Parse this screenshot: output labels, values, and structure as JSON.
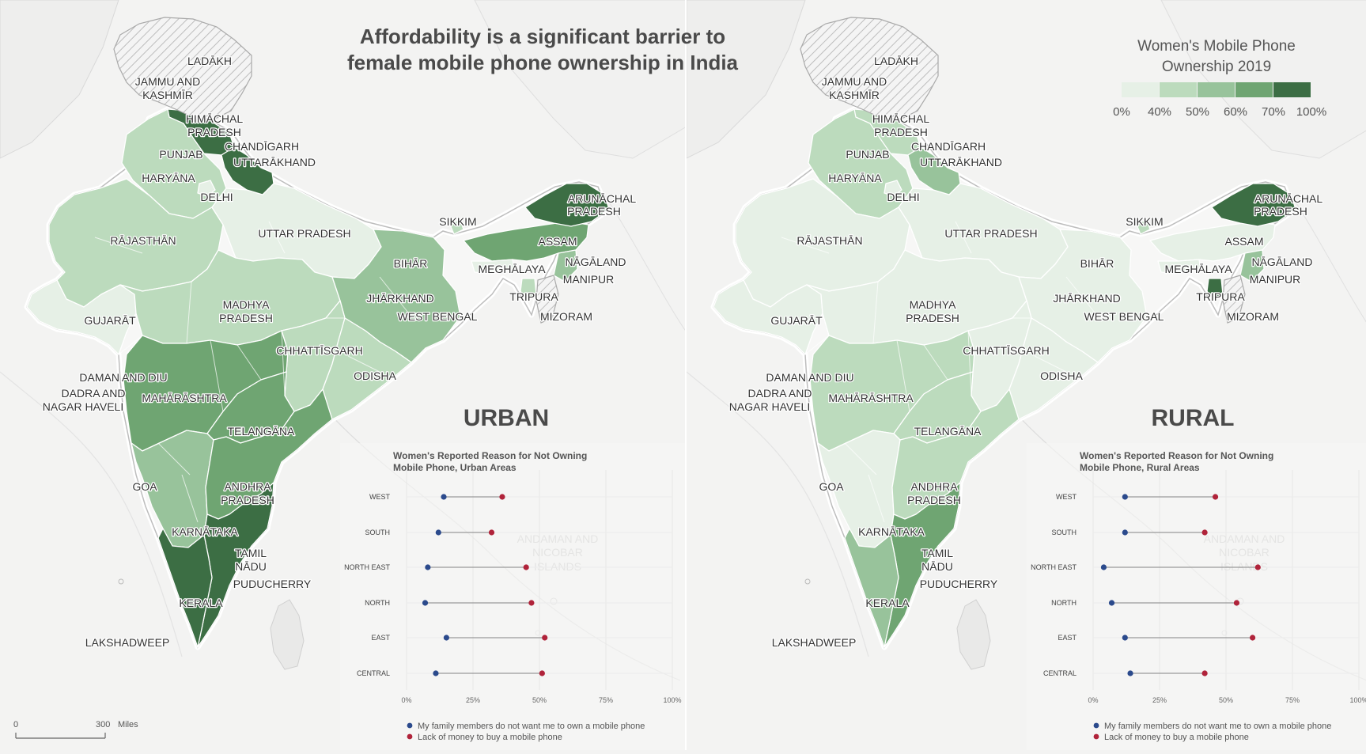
{
  "title_line1": "Affordability is a significant barrier to",
  "title_line2": "female mobile phone ownership in India",
  "legend": {
    "title_line1": "Women's Mobile Phone",
    "title_line2": "Ownership 2019",
    "bins": [
      {
        "label": "0%",
        "color": "#e6f0e6"
      },
      {
        "label": "40%",
        "color": "#bcdbbd"
      },
      {
        "label": "50%",
        "color": "#98c39b"
      },
      {
        "label": "60%",
        "color": "#6fa572"
      },
      {
        "label": "70%",
        "color": "#3c6e44"
      }
    ],
    "end_label": "100%"
  },
  "scale_bar": {
    "zero": "0",
    "value": "300",
    "unit": "Miles"
  },
  "colors": {
    "hatch": "#e9e9e9",
    "land": "#f7f7f6",
    "series1": "#2b4a8c",
    "series2": "#b0233a"
  },
  "panels": [
    {
      "name": "URBAN",
      "region_colors": {
        "north_west": "#bcdbbd",
        "himachal": "#3c6e44",
        "uttarakhand": "#3c6e44",
        "delhi": "#e6f0e6",
        "rajasthan": "#bcdbbd",
        "uttar_pradesh": "#e6f0e6",
        "gujarat": "#e6f0e6",
        "madhya": "#bcdbbd",
        "east": "#98c39b",
        "chhattisgarh": "#bcdbbd",
        "odisha": "#bcdbbd",
        "maharashtra": "#6fa572",
        "telangana": "#6fa572",
        "karnataka": "#98c39b",
        "andhra": "#6fa572",
        "tamil": "#3c6e44",
        "kerala": "#3c6e44",
        "ne": "#6fa572",
        "arunachal": "#3c6e44",
        "sikkim": "#bcdbbd",
        "meghalaya": "#e6f0e6",
        "manipur": "#98c39b",
        "tripura": "#bcdbbd"
      },
      "chart_data": {
        "type": "dumbbell",
        "title": "Women's Reported Reason for Not Owning Mobile Phone, Urban Areas",
        "title_line1": "Women's Reported Reason for Not Owning",
        "title_line2": "Mobile Phone, Urban Areas",
        "categories": [
          "WEST",
          "SOUTH",
          "NORTH EAST",
          "NORTH",
          "EAST",
          "CENTRAL"
        ],
        "series": [
          {
            "name": "My family members do not want me to own a mobile phone",
            "values": [
              14,
              12,
              8,
              7,
              15,
              11
            ]
          },
          {
            "name": "Lack of money to buy a mobile phone",
            "values": [
              36,
              32,
              45,
              47,
              52,
              51
            ]
          }
        ],
        "x_ticks": [
          "0%",
          "25%",
          "50%",
          "75%",
          "100%"
        ],
        "xlim": [
          0,
          100
        ],
        "grid": true
      }
    },
    {
      "name": "RURAL",
      "region_colors": {
        "north_west": "#bcdbbd",
        "himachal": "#bcdbbd",
        "uttarakhand": "#98c39b",
        "delhi": "#e6f0e6",
        "rajasthan": "#e6f0e6",
        "uttar_pradesh": "#e6f0e6",
        "gujarat": "#e6f0e6",
        "madhya": "#e6f0e6",
        "east": "#e6f0e6",
        "chhattisgarh": "#e6f0e6",
        "odisha": "#e6f0e6",
        "maharashtra": "#bcdbbd",
        "telangana": "#bcdbbd",
        "karnataka": "#e6f0e6",
        "andhra": "#bcdbbd",
        "tamil": "#6fa572",
        "kerala": "#98c39b",
        "ne": "#e6f0e6",
        "arunachal": "#3c6e44",
        "sikkim": "#bcdbbd",
        "meghalaya": "#e6f0e6",
        "manipur": "#98c39b",
        "tripura": "#3c6e44"
      },
      "chart_data": {
        "type": "dumbbell",
        "title": "Women's Reported Reason for Not Owning Mobile Phone, Rural Areas",
        "title_line1": "Women's Reported Reason for Not Owning",
        "title_line2": "Mobile Phone, Rural Areas",
        "categories": [
          "WEST",
          "SOUTH",
          "NORTH EAST",
          "NORTH",
          "EAST",
          "CENTRAL"
        ],
        "series": [
          {
            "name": "My family members do not want me to own a mobile phone",
            "values": [
              12,
              12,
              4,
              7,
              12,
              14
            ]
          },
          {
            "name": "Lack of money to buy a mobile phone",
            "values": [
              46,
              42,
              62,
              54,
              60,
              42
            ]
          }
        ],
        "x_ticks": [
          "0%",
          "25%",
          "50%",
          "75%",
          "100%"
        ],
        "xlim": [
          0,
          100
        ],
        "grid": true
      }
    }
  ],
  "map_labels": [
    {
      "text": "LADĀKH"
    },
    {
      "text": "JAMMU AND"
    },
    {
      "text": "KASHMĪR"
    },
    {
      "text": "HIMĀCHAL"
    },
    {
      "text": "PRADESH"
    },
    {
      "text": "CHANDĪGARH"
    },
    {
      "text": "PUNJAB"
    },
    {
      "text": "UTTARĀKHAND"
    },
    {
      "text": "HARYĀNA"
    },
    {
      "text": "DELHI"
    },
    {
      "text": "RĀJASTHĀN"
    },
    {
      "text": "UTTAR PRADESH"
    },
    {
      "text": "SIKKIM"
    },
    {
      "text": "ARUNĀCHAL"
    },
    {
      "text": "PRADESH"
    },
    {
      "text": "ASSAM"
    },
    {
      "text": "BIHĀR"
    },
    {
      "text": "MEGHĀLAYA"
    },
    {
      "text": "NĀGĀLAND"
    },
    {
      "text": "MANIPUR"
    },
    {
      "text": "JHĀRKHAND"
    },
    {
      "text": "TRIPURA"
    },
    {
      "text": "MADHYA"
    },
    {
      "text": "PRADESH"
    },
    {
      "text": "WEST BENGAL"
    },
    {
      "text": "MIZORAM"
    },
    {
      "text": "GUJARĀT"
    },
    {
      "text": "CHHATTĪSGARH"
    },
    {
      "text": "ODISHA"
    },
    {
      "text": "DAMAN AND DIU"
    },
    {
      "text": "DADRA AND"
    },
    {
      "text": "NAGAR HAVELI"
    },
    {
      "text": "MAHĀRĀSHTRA"
    },
    {
      "text": "TELANGĀNA"
    },
    {
      "text": "GOA"
    },
    {
      "text": "ANDHRA"
    },
    {
      "text": "PRADESH"
    },
    {
      "text": "KARNĀTAKA"
    },
    {
      "text": "TAMIL"
    },
    {
      "text": "NĀDU"
    },
    {
      "text": "PUDUCHERRY"
    },
    {
      "text": "KERALA"
    },
    {
      "text": "LAKSHADWEEP"
    }
  ],
  "faint_labels": [
    {
      "text": "ANDAMAN AND"
    },
    {
      "text": "NICOBAR"
    },
    {
      "text": "ISLANDS"
    }
  ]
}
